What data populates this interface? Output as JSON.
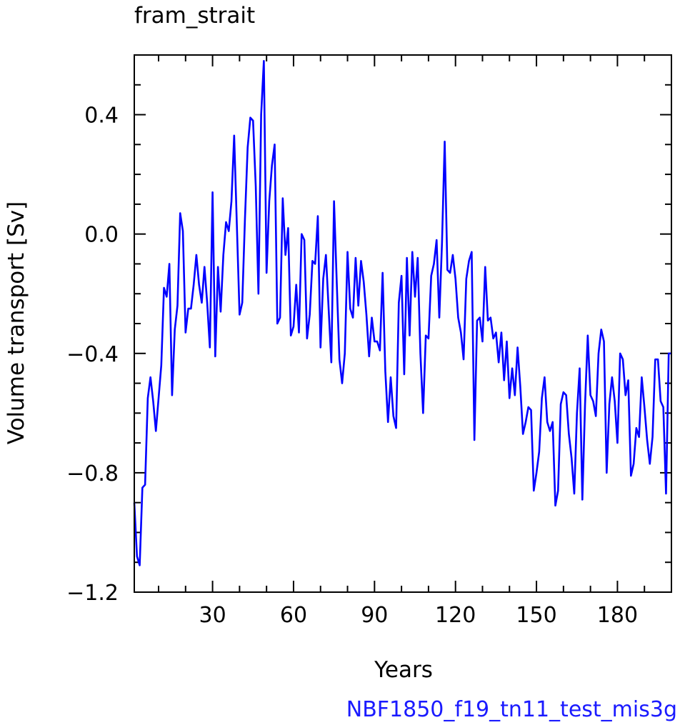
{
  "chart_data": {
    "type": "line",
    "title": "fram_strait",
    "xlabel": "Years",
    "ylabel": "Volume transport [Sv]",
    "case_name": "NBF1850_f19_tn11_test_mis3g",
    "xlim": [
      1,
      200
    ],
    "ylim": [
      -1.2,
      0.6
    ],
    "x_ticks": [
      30,
      60,
      90,
      120,
      150,
      180
    ],
    "x_tick_labels": [
      "30",
      "60",
      "90",
      "120",
      "150",
      "180"
    ],
    "y_ticks": [
      -1.2,
      -0.8,
      -0.4,
      0.0,
      0.4
    ],
    "y_tick_labels": [
      "−1.2",
      "−0.8",
      "−0.4",
      "0.0",
      "0.4"
    ],
    "line_color": "#0000ff",
    "series": [
      {
        "values": [
          -0.9,
          -1.08,
          -1.11,
          -0.85,
          -0.84,
          -0.55,
          -0.48,
          -0.56,
          -0.66,
          -0.55,
          -0.44,
          -0.18,
          -0.21,
          -0.1,
          -0.54,
          -0.32,
          -0.24,
          0.07,
          0.01,
          -0.33,
          -0.25,
          -0.25,
          -0.17,
          -0.07,
          -0.17,
          -0.23,
          -0.11,
          -0.23,
          -0.38,
          0.14,
          -0.41,
          -0.11,
          -0.26,
          -0.07,
          0.04,
          0.01,
          0.11,
          0.33,
          0.03,
          -0.27,
          -0.23,
          0.05,
          0.29,
          0.39,
          0.38,
          0.16,
          -0.2,
          0.4,
          0.58,
          -0.13,
          0.11,
          0.23,
          0.3,
          -0.3,
          -0.28,
          0.12,
          -0.07,
          0.02,
          -0.34,
          -0.31,
          -0.17,
          -0.33,
          0.0,
          -0.02,
          -0.35,
          -0.27,
          -0.09,
          -0.1,
          0.06,
          -0.38,
          -0.15,
          -0.07,
          -0.25,
          -0.43,
          0.11,
          -0.16,
          -0.42,
          -0.5,
          -0.4,
          -0.06,
          -0.25,
          -0.28,
          -0.08,
          -0.24,
          -0.09,
          -0.16,
          -0.27,
          -0.41,
          -0.28,
          -0.36,
          -0.36,
          -0.39,
          -0.13,
          -0.46,
          -0.63,
          -0.48,
          -0.61,
          -0.65,
          -0.23,
          -0.14,
          -0.47,
          -0.08,
          -0.34,
          -0.06,
          -0.21,
          -0.08,
          -0.4,
          -0.6,
          -0.34,
          -0.35,
          -0.14,
          -0.1,
          -0.02,
          -0.28,
          -0.03,
          0.31,
          -0.12,
          -0.13,
          -0.07,
          -0.15,
          -0.28,
          -0.33,
          -0.42,
          -0.15,
          -0.09,
          -0.06,
          -0.69,
          -0.29,
          -0.28,
          -0.36,
          -0.11,
          -0.29,
          -0.28,
          -0.35,
          -0.33,
          -0.43,
          -0.33,
          -0.49,
          -0.36,
          -0.55,
          -0.45,
          -0.54,
          -0.38,
          -0.51,
          -0.67,
          -0.63,
          -0.58,
          -0.59,
          -0.86,
          -0.8,
          -0.73,
          -0.55,
          -0.48,
          -0.63,
          -0.66,
          -0.63,
          -0.91,
          -0.86,
          -0.57,
          -0.53,
          -0.54,
          -0.67,
          -0.75,
          -0.87,
          -0.6,
          -0.45,
          -0.89,
          -0.57,
          -0.34,
          -0.54,
          -0.56,
          -0.61,
          -0.4,
          -0.32,
          -0.36,
          -0.8,
          -0.57,
          -0.48,
          -0.56,
          -0.7,
          -0.4,
          -0.42,
          -0.54,
          -0.49,
          -0.81,
          -0.77,
          -0.65,
          -0.68,
          -0.48,
          -0.58,
          -0.69,
          -0.77,
          -0.68,
          -0.42,
          -0.42,
          -0.56,
          -0.58,
          -0.87,
          -0.4,
          -0.4
        ]
      }
    ]
  }
}
